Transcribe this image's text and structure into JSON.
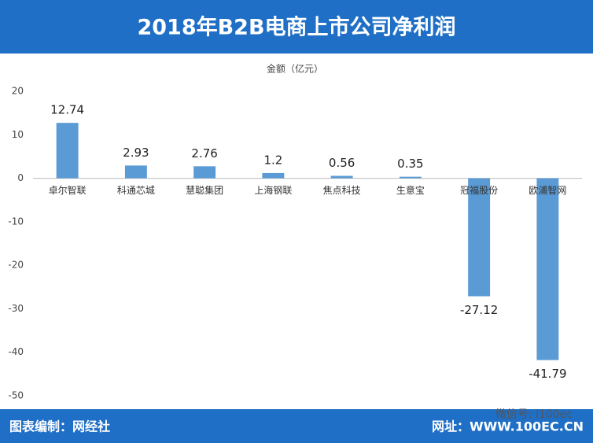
{
  "chart_data": {
    "type": "bar",
    "title": "2018年B2B电商上市公司净利润",
    "ylabel": "金额（亿元）",
    "categories": [
      "卓尔智联",
      "科通芯城",
      "慧聪集团",
      "上海钢联",
      "焦点科技",
      "生意宝",
      "冠福股份",
      "欧浦智网"
    ],
    "values": [
      12.74,
      2.93,
      2.76,
      1.2,
      0.56,
      0.35,
      -27.12,
      -41.79
    ],
    "color": "#5b9bd5",
    "ylim": [
      -50,
      20
    ],
    "yticks": [
      -50,
      -40,
      -30,
      -20,
      -10,
      0,
      10,
      20
    ],
    "grid": false
  },
  "footer": {
    "left": "图表编制：网经社",
    "right": "网址：WWW.100EC.CN",
    "wechat": "微信号: i100ec"
  }
}
